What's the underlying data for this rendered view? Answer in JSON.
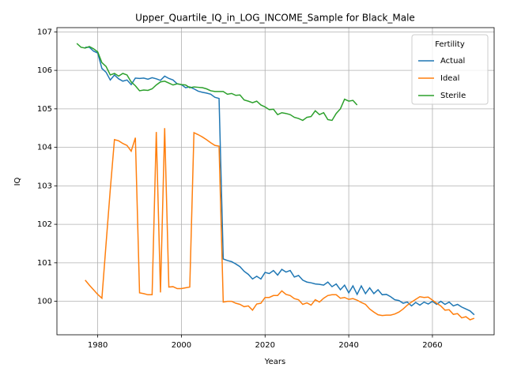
{
  "chart_data": {
    "type": "line",
    "title": "Upper_Quartile_IQ_in_LOG_INCOME_Sample for Black_Male",
    "x_label": "Years",
    "y_label": "IQ",
    "legend_title": "Fertility",
    "legend_position": "upper right",
    "x": [
      1975,
      1976,
      1977,
      1978,
      1979,
      1980,
      1981,
      1982,
      1983,
      1984,
      1985,
      1986,
      1987,
      1988,
      1989,
      1990,
      1991,
      1992,
      1993,
      1994,
      1995,
      1996,
      1997,
      1998,
      1999,
      2000,
      2001,
      2002,
      2003,
      2004,
      2005,
      2006,
      2007,
      2008,
      2009,
      2010,
      2011,
      2012,
      2013,
      2014,
      2015,
      2016,
      2017,
      2018,
      2019,
      2020,
      2021,
      2022,
      2023,
      2024,
      2025,
      2026,
      2027,
      2028,
      2029,
      2030,
      2031,
      2032,
      2033,
      2034,
      2035,
      2036,
      2037,
      2038,
      2039,
      2040,
      2041,
      2042,
      2043,
      2044,
      2045,
      2046,
      2047,
      2048,
      2049,
      2050,
      2051,
      2052,
      2053,
      2054,
      2055,
      2056,
      2057,
      2058,
      2059,
      2060,
      2061,
      2062,
      2063,
      2064,
      2065,
      2066,
      2067,
      2068,
      2069,
      2070
    ],
    "xlim": [
      1970.25,
      2074.75
    ],
    "xticks": [
      1980,
      2000,
      2020,
      2040,
      2060
    ],
    "ylim": [
      99.13,
      107.11
    ],
    "yticks": [
      100,
      101,
      102,
      103,
      104,
      105,
      106,
      107
    ],
    "grid": true,
    "series": [
      {
        "name": "Actual",
        "color": "#1f77b4",
        "values": [
          null,
          null,
          106.6,
          106.6,
          106.5,
          106.45,
          106.05,
          105.95,
          105.75,
          105.88,
          105.78,
          105.72,
          105.75,
          105.63,
          105.8,
          105.79,
          105.8,
          105.77,
          105.81,
          105.78,
          105.74,
          105.85,
          105.79,
          105.75,
          105.65,
          105.63,
          105.55,
          105.57,
          105.52,
          105.46,
          105.43,
          105.41,
          105.38,
          105.3,
          105.27,
          101.1,
          101.06,
          101.03,
          100.97,
          100.9,
          100.78,
          100.7,
          100.58,
          100.65,
          100.58,
          100.75,
          100.72,
          100.8,
          100.68,
          100.83,
          100.76,
          100.8,
          100.63,
          100.67,
          100.55,
          100.5,
          100.48,
          100.45,
          100.44,
          100.42,
          100.5,
          100.38,
          100.45,
          100.3,
          100.42,
          100.22,
          100.4,
          100.18,
          100.4,
          100.2,
          100.35,
          100.2,
          100.3,
          100.17,
          100.18,
          100.12,
          100.04,
          100.02,
          99.95,
          99.98,
          99.88,
          99.97,
          99.9,
          99.98,
          99.93,
          100.0,
          99.92,
          100.0,
          99.92,
          99.98,
          99.88,
          99.92,
          99.85,
          99.8,
          99.75,
          99.65
        ]
      },
      {
        "name": "Ideal",
        "color": "#ff7f0e",
        "values": [
          null,
          null,
          100.55,
          100.42,
          100.3,
          100.18,
          100.08,
          101.5,
          102.9,
          104.2,
          104.17,
          104.1,
          104.05,
          103.9,
          104.25,
          100.22,
          100.2,
          100.17,
          100.17,
          104.4,
          100.23,
          104.5,
          100.37,
          100.38,
          100.33,
          100.33,
          100.35,
          100.37,
          104.38,
          104.33,
          104.27,
          104.2,
          104.12,
          104.05,
          104.03,
          99.98,
          100.0,
          100.0,
          99.95,
          99.92,
          99.86,
          99.88,
          99.77,
          99.93,
          99.95,
          100.1,
          100.1,
          100.15,
          100.15,
          100.27,
          100.18,
          100.15,
          100.07,
          100.04,
          99.92,
          99.96,
          99.9,
          100.04,
          99.98,
          100.08,
          100.15,
          100.17,
          100.17,
          100.08,
          100.1,
          100.05,
          100.07,
          100.03,
          99.97,
          99.92,
          99.8,
          99.72,
          99.65,
          99.63,
          99.64,
          99.64,
          99.67,
          99.72,
          99.8,
          99.9,
          99.98,
          100.05,
          100.12,
          100.1,
          100.11,
          100.03,
          99.95,
          99.88,
          99.77,
          99.78,
          99.66,
          99.68,
          99.57,
          99.6,
          99.52,
          99.56
        ]
      },
      {
        "name": "Sterile",
        "color": "#2ca02c",
        "values": [
          106.7,
          106.6,
          106.58,
          106.62,
          106.56,
          106.48,
          106.2,
          106.1,
          105.88,
          105.92,
          105.85,
          105.92,
          105.88,
          105.7,
          105.6,
          105.47,
          105.49,
          105.48,
          105.52,
          105.62,
          105.7,
          105.72,
          105.67,
          105.62,
          105.65,
          105.63,
          105.62,
          105.55,
          105.57,
          105.56,
          105.55,
          105.52,
          105.47,
          105.45,
          105.45,
          105.45,
          105.38,
          105.4,
          105.35,
          105.36,
          105.23,
          105.2,
          105.16,
          105.2,
          105.1,
          105.05,
          104.98,
          104.99,
          104.85,
          104.9,
          104.88,
          104.85,
          104.78,
          104.75,
          104.7,
          104.78,
          104.8,
          104.95,
          104.85,
          104.9,
          104.72,
          104.7,
          104.88,
          105.0,
          105.25,
          105.2,
          105.22,
          105.1,
          null,
          null,
          null,
          null,
          null,
          null,
          null,
          null,
          null,
          null,
          null,
          null,
          null,
          null,
          null,
          null,
          null,
          null,
          null,
          null,
          null,
          null,
          null,
          null,
          null,
          null,
          null,
          null
        ]
      }
    ]
  }
}
